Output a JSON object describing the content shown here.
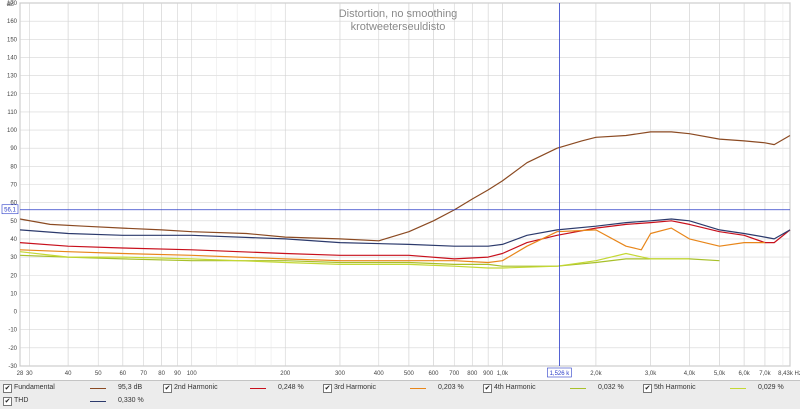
{
  "chart_data": {
    "type": "line",
    "title": "Distortion, no smoothing",
    "subtitle": "krotweeterseuldisto",
    "ylabel": "dB",
    "xunit": "Hz",
    "x_scale": "log",
    "xlim": [
      28,
      8430
    ],
    "ylim": [
      -30,
      170
    ],
    "y_ticks": [
      -30,
      -20,
      -10,
      0,
      10,
      20,
      30,
      40,
      50,
      60,
      70,
      80,
      90,
      100,
      110,
      120,
      130,
      140,
      150,
      160,
      170
    ],
    "x_ticks": [
      {
        "v": 28,
        "label": "28"
      },
      {
        "v": 30,
        "label": "30"
      },
      {
        "v": 40,
        "label": "40"
      },
      {
        "v": 50,
        "label": "50"
      },
      {
        "v": 60,
        "label": "60"
      },
      {
        "v": 70,
        "label": "70"
      },
      {
        "v": 80,
        "label": "80"
      },
      {
        "v": 90,
        "label": "90"
      },
      {
        "v": 100,
        "label": "100"
      },
      {
        "v": 200,
        "label": "200"
      },
      {
        "v": 300,
        "label": "300"
      },
      {
        "v": 400,
        "label": "400"
      },
      {
        "v": 500,
        "label": "500"
      },
      {
        "v": 600,
        "label": "600"
      },
      {
        "v": 700,
        "label": "700"
      },
      {
        "v": 800,
        "label": "800"
      },
      {
        "v": 900,
        "label": "900"
      },
      {
        "v": 1000,
        "label": "1,0k"
      },
      {
        "v": 2000,
        "label": "2,0k"
      },
      {
        "v": 3000,
        "label": "3,0k"
      },
      {
        "v": 4000,
        "label": "4,0k"
      },
      {
        "v": 5000,
        "label": "5,0k"
      },
      {
        "v": 6000,
        "label": "6,0k"
      },
      {
        "v": 7000,
        "label": "7,0k"
      },
      {
        "v": 8430,
        "label": "8,43k Hz"
      }
    ],
    "cursor": {
      "x": 1526,
      "x_label": "1,526 k",
      "y": 56.1,
      "y_label": "56,1"
    },
    "grid": true,
    "series": [
      {
        "name": "Fundamental",
        "color": "#8b4a22",
        "x": [
          28,
          35,
          45,
          60,
          80,
          100,
          150,
          200,
          300,
          400,
          500,
          600,
          700,
          800,
          900,
          1000,
          1200,
          1500,
          1800,
          2000,
          2500,
          3000,
          3500,
          4000,
          5000,
          6000,
          7000,
          7500,
          8430
        ],
        "y": [
          51,
          48,
          47,
          46,
          45,
          44,
          43,
          41,
          40,
          39,
          44,
          50,
          56,
          62,
          67,
          72,
          82,
          90,
          94,
          96,
          97,
          99,
          99,
          98,
          95,
          94,
          93,
          92,
          97
        ]
      },
      {
        "name": "2nd Harmonic",
        "color": "#c8101c",
        "x": [
          28,
          40,
          60,
          100,
          200,
          300,
          500,
          700,
          900,
          1000,
          1200,
          1500,
          2000,
          2500,
          3000,
          3500,
          4000,
          5000,
          6000,
          7000,
          7500,
          8430
        ],
        "y": [
          38,
          36,
          35,
          34,
          32,
          31,
          31,
          29,
          30,
          32,
          38,
          42,
          46,
          48,
          49,
          50,
          48,
          44,
          42,
          38,
          38,
          45
        ]
      },
      {
        "name": "3rd Harmonic",
        "color": "#e8861a",
        "x": [
          28,
          40,
          60,
          100,
          200,
          300,
          500,
          700,
          900,
          1000,
          1200,
          1500,
          2000,
          2500,
          2800,
          3000,
          3500,
          4000,
          5000,
          6000,
          7000
        ],
        "y": [
          34,
          33,
          32,
          31,
          29,
          28,
          28,
          28,
          27,
          28,
          36,
          44,
          45,
          36,
          34,
          43,
          46,
          40,
          36,
          38,
          38
        ]
      },
      {
        "name": "4th Harmonic",
        "color": "#a8c02a",
        "x": [
          28,
          40,
          60,
          100,
          200,
          300,
          500,
          700,
          900,
          1000,
          1500,
          2000,
          2500,
          3000,
          4000,
          5000
        ],
        "y": [
          31,
          30,
          29,
          28,
          28,
          27,
          27,
          26,
          26,
          25,
          25,
          27,
          29,
          29,
          29,
          28
        ]
      },
      {
        "name": "5th Harmonic",
        "color": "#c4d834",
        "x": [
          28,
          40,
          60,
          100,
          200,
          300,
          500,
          700,
          900,
          1000,
          1500,
          2000,
          2500,
          3000,
          4000
        ],
        "y": [
          33,
          30,
          30,
          29,
          27,
          26,
          26,
          25,
          24,
          24,
          25,
          28,
          32,
          29,
          29
        ]
      },
      {
        "name": "THD",
        "color": "#2c3a6c",
        "x": [
          28,
          40,
          60,
          100,
          200,
          300,
          500,
          700,
          900,
          1000,
          1200,
          1500,
          2000,
          2500,
          3000,
          3500,
          4000,
          5000,
          6000,
          7000,
          7500,
          8430
        ],
        "y": [
          45,
          43,
          42,
          42,
          40,
          38,
          37,
          36,
          36,
          37,
          42,
          45,
          47,
          49,
          50,
          51,
          50,
          45,
          43,
          41,
          40,
          45
        ]
      }
    ]
  },
  "legend": {
    "items": [
      {
        "name": "Fundamental",
        "value": "95,3 dB",
        "color": "#8b4a22",
        "checked": "✔"
      },
      {
        "name": "2nd Harmonic",
        "value": "0,248 %",
        "color": "#c8101c",
        "checked": "✔"
      },
      {
        "name": "3rd Harmonic",
        "value": "0,203 %",
        "color": "#e8861a",
        "checked": "✔"
      },
      {
        "name": "4th Harmonic",
        "value": "0,032 %",
        "color": "#a8c02a",
        "checked": "✔"
      },
      {
        "name": "5th Harmonic",
        "value": "0,029 %",
        "color": "#c4d834",
        "checked": "✔"
      },
      {
        "name": "THD",
        "value": "0,330 %",
        "color": "#2c3a6c",
        "checked": "✔"
      }
    ]
  }
}
